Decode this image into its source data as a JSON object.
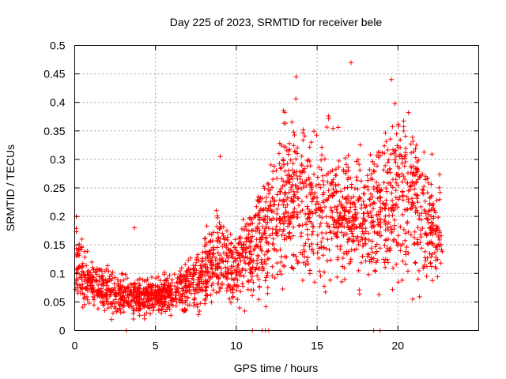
{
  "chart_data": {
    "type": "scatter",
    "title": "Day 225 of 2023, SRMTID for receiver bele",
    "xlabel": "GPS time / hours",
    "ylabel": "SRMTID / TECUs",
    "xlim": [
      0,
      25
    ],
    "ylim": [
      0,
      0.5
    ],
    "xticks": [
      0,
      5,
      10,
      15,
      20
    ],
    "xtick_labels": [
      "0",
      "5",
      "10",
      "15",
      "20"
    ],
    "yticks": [
      0,
      0.05,
      0.1,
      0.15,
      0.2,
      0.25,
      0.3,
      0.35,
      0.4,
      0.45,
      0.5
    ],
    "ytick_labels": [
      "0",
      "0.05",
      "0.1",
      "0.15",
      "0.2",
      "0.25",
      "0.3",
      "0.35",
      "0.4",
      "0.45",
      "0.5"
    ],
    "grid": true,
    "marker": "+",
    "point_color": "#ff0000",
    "series": [
      {
        "name": "SRMTID",
        "trend_x": [
          0,
          0.3,
          1,
          2,
          3,
          4,
          5,
          6,
          7,
          8,
          9,
          9.5,
          10,
          11,
          12,
          13,
          14,
          15,
          16,
          17,
          18,
          19,
          20,
          21,
          22,
          22.8
        ],
        "trend_y": [
          0.12,
          0.1,
          0.08,
          0.07,
          0.06,
          0.06,
          0.06,
          0.065,
          0.08,
          0.1,
          0.13,
          0.11,
          0.11,
          0.14,
          0.17,
          0.23,
          0.24,
          0.21,
          0.22,
          0.2,
          0.19,
          0.21,
          0.25,
          0.22,
          0.18,
          0.17
        ],
        "x_range": [
          0,
          22.8
        ],
        "samples": 2400,
        "outliers": [
          {
            "x": 17.1,
            "y": 0.47
          },
          {
            "x": 19.6,
            "y": 0.44
          },
          {
            "x": 13.7,
            "y": 0.445
          },
          {
            "x": 0.1,
            "y": 0.2
          },
          {
            "x": 3.7,
            "y": 0.18
          },
          {
            "x": 9.0,
            "y": 0.305
          }
        ],
        "zero_values_x": [
          3.2,
          11.0,
          11.6,
          11.8,
          12.0,
          18.5,
          18.9
        ]
      }
    ]
  }
}
